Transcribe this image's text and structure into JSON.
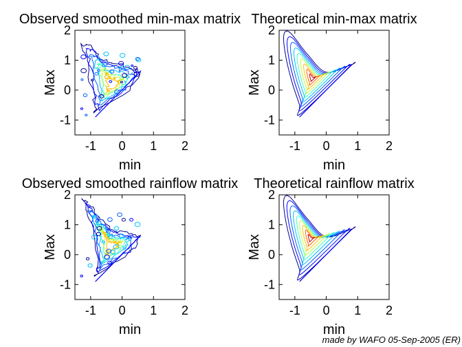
{
  "chart_data": [
    {
      "type": "contour",
      "title": "Observed smoothed min-max matrix",
      "xlabel": "min",
      "ylabel": "Max",
      "xlim": [
        -1.5,
        2
      ],
      "ylim": [
        -1.5,
        2
      ],
      "xticks": [
        -1,
        0,
        1,
        2
      ],
      "yticks": [
        -1,
        0,
        1,
        2
      ],
      "tick_labels_x": [
        "-1",
        "0",
        "1",
        "2"
      ],
      "tick_labels_y": [
        "-1",
        "0",
        "1",
        "2"
      ],
      "kind": "observed",
      "region": {
        "min_range": [
          -1.3,
          0.6
        ],
        "max_range": [
          -0.8,
          1.6
        ]
      },
      "peak": {
        "min": -0.3,
        "max": 0.2
      }
    },
    {
      "type": "contour",
      "title": "Theoretical min-max matrix",
      "xlabel": "min",
      "ylabel": "Max",
      "xlim": [
        -1.5,
        2
      ],
      "ylim": [
        -1.5,
        2
      ],
      "xticks": [
        -1,
        0,
        1,
        2
      ],
      "yticks": [
        -1,
        0,
        1,
        2
      ],
      "tick_labels_x": [
        "-1",
        "0",
        "1",
        "2"
      ],
      "tick_labels_y": [
        "-1",
        "0",
        "1",
        "2"
      ],
      "kind": "theoretical",
      "region": {
        "min_range": [
          -1.4,
          0.8
        ],
        "max_range": [
          -0.8,
          1.9
        ]
      },
      "peak": {
        "min": -0.45,
        "max": 0.4
      }
    },
    {
      "type": "contour",
      "title": "Observed smoothed rainflow matrix",
      "xlabel": "min",
      "ylabel": "Max",
      "xlim": [
        -1.5,
        2
      ],
      "ylim": [
        -1.5,
        2
      ],
      "xticks": [
        -1,
        0,
        1,
        2
      ],
      "yticks": [
        -1,
        0,
        1,
        2
      ],
      "tick_labels_x": [
        "-1",
        "0",
        "1",
        "2"
      ],
      "tick_labels_y": [
        "-1",
        "0",
        "1",
        "2"
      ],
      "kind": "observed",
      "region": {
        "min_range": [
          -1.3,
          0.6
        ],
        "max_range": [
          -0.8,
          1.9
        ]
      },
      "peak": {
        "min": -0.35,
        "max": 0.3
      }
    },
    {
      "type": "contour",
      "title": "Theoretical rainflow matrix",
      "xlabel": "min",
      "ylabel": "Max",
      "xlim": [
        -1.5,
        2
      ],
      "ylim": [
        -1.5,
        2
      ],
      "xticks": [
        -1,
        0,
        1,
        2
      ],
      "yticks": [
        -1,
        0,
        1,
        2
      ],
      "tick_labels_x": [
        "-1",
        "0",
        "1",
        "2"
      ],
      "tick_labels_y": [
        "-1",
        "0",
        "1",
        "2"
      ],
      "kind": "theoretical",
      "region": {
        "min_range": [
          -1.4,
          0.8
        ],
        "max_range": [
          -0.8,
          1.9
        ]
      },
      "peak": {
        "min": -0.5,
        "max": 0.55
      }
    }
  ],
  "contour_colors": [
    "#00008f",
    "#0000ff",
    "#0060ff",
    "#00bfff",
    "#40ffbf",
    "#bfff40",
    "#ffbf00",
    "#ff6000",
    "#bf0000"
  ],
  "footer": "made by WAFO 05-Sep-2005 (ER)"
}
